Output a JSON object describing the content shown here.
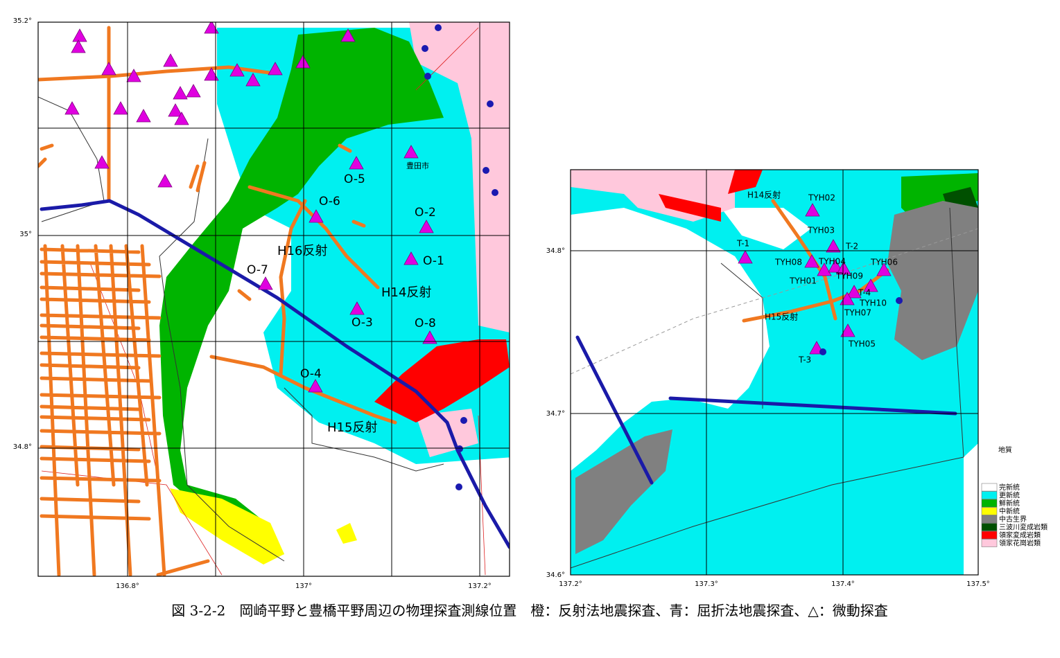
{
  "left_map": {
    "lat_ticks": [
      "35.2°",
      "35°",
      "34.8°"
    ],
    "lon_ticks": [
      "136.8°",
      "137°",
      "137.2°"
    ],
    "labels": [
      "O-5",
      "O-6",
      "O-2",
      "H16反射",
      "O-1",
      "O-7",
      "H14反射",
      "O-3",
      "O-8",
      "O-4",
      "H15反射",
      "豊田市"
    ]
  },
  "right_map": {
    "lat_ticks": [
      "34.8°",
      "34.7°",
      "34.6°"
    ],
    "lon_ticks": [
      "137.2°",
      "137.3°",
      "137.4°",
      "137.5°"
    ],
    "labels": [
      "H14反射",
      "TYH02",
      "TYH03",
      "T-2",
      "T-1",
      "TYH08",
      "TYH04",
      "TYH06",
      "TYH01",
      "TYH09",
      "T-4",
      "TYH10",
      "H15反射",
      "TYH07",
      "TYH05",
      "T-3"
    ]
  },
  "legend": {
    "title": "地質",
    "items": [
      {
        "label": "完新統",
        "color": "#ffffff"
      },
      {
        "label": "更新統",
        "color": "#00f0f0"
      },
      {
        "label": "鮮新統",
        "color": "#00b400"
      },
      {
        "label": "中新統",
        "color": "#ffff00"
      },
      {
        "label": "中古生界",
        "color": "#808080"
      },
      {
        "label": "三波川変成岩類",
        "color": "#005000"
      },
      {
        "label": "領家変成岩類",
        "color": "#ff0000"
      },
      {
        "label": "領家花崗岩類",
        "color": "#ffc8dc"
      }
    ]
  },
  "caption": "図 3-2-2　岡崎平野と豊橋平野周辺の物理探査測線位置　橙：反射法地震探査、青：屈折法地震探査、△：微動探査"
}
